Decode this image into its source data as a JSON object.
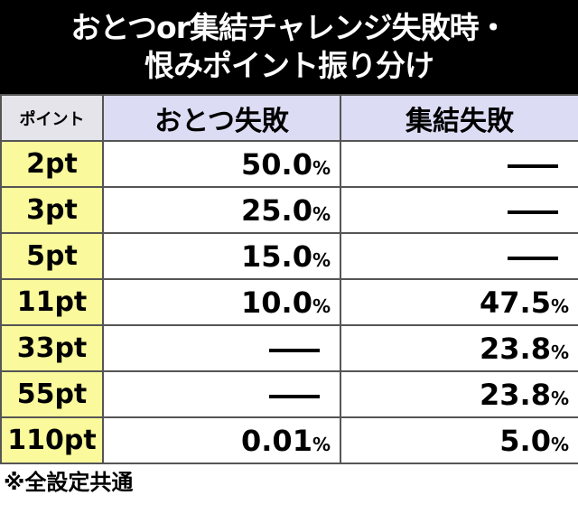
{
  "title": {
    "lines": [
      "おとつor集結チャレンジ失敗時・",
      "恨みポイント振り分け"
    ]
  },
  "table": {
    "header": [
      "ポイント",
      "おとつ失敗",
      "集結失敗"
    ],
    "rows": [
      [
        "2pt",
        "50.0%",
        "―"
      ],
      [
        "3pt",
        "25.0%",
        "―"
      ],
      [
        "5pt",
        "15.0%",
        "―"
      ],
      [
        "11pt",
        "10.0%",
        "47.5%"
      ],
      [
        "33pt",
        "―",
        "23.8%"
      ],
      [
        "55pt",
        "―",
        "23.8%"
      ],
      [
        "110pt",
        "0.01%",
        "5.0%"
      ]
    ]
  },
  "footer": {
    "note": "※全設定共通"
  }
}
